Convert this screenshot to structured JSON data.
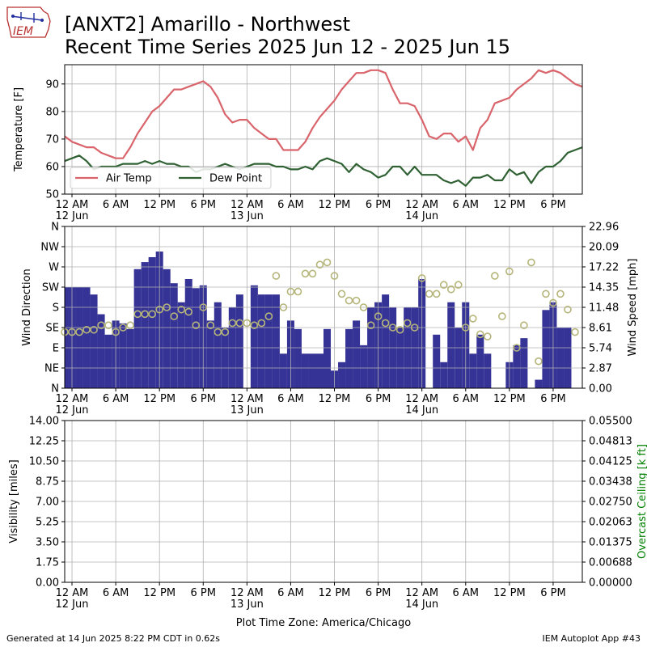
{
  "header": {
    "logo_text": "IEM",
    "title_line1": "[ANXT2] Amarillo - Northwest",
    "title_line2": "Recent Time Series 2025 Jun 12 - 2025 Jun 15"
  },
  "footer": {
    "generated": "Generated at 14 Jun 2025 8:22 PM CDT in 0.62s",
    "app": "IEM Autoplot App #43",
    "timezone": "Plot Time Zone: America/Chicago"
  },
  "colors": {
    "air_temp": "#d9646b",
    "dew_point": "#2f6133",
    "wind_speed_bar": "#363396",
    "wind_dir_marker": "#b5b57a",
    "ceiling_axis": "#008000"
  },
  "x_ticks": [
    {
      "label": "12 AM",
      "sub": "12 Jun",
      "h": 0
    },
    {
      "label": "6 AM",
      "sub": "",
      "h": 6
    },
    {
      "label": "12 PM",
      "sub": "",
      "h": 12
    },
    {
      "label": "6 PM",
      "sub": "",
      "h": 18
    },
    {
      "label": "12 AM",
      "sub": "13 Jun",
      "h": 24
    },
    {
      "label": "6 AM",
      "sub": "",
      "h": 30
    },
    {
      "label": "12 PM",
      "sub": "",
      "h": 36
    },
    {
      "label": "6 PM",
      "sub": "",
      "h": 42
    },
    {
      "label": "12 AM",
      "sub": "14 Jun",
      "h": 48
    },
    {
      "label": "6 AM",
      "sub": "",
      "h": 54
    },
    {
      "label": "12 PM",
      "sub": "",
      "h": 60
    },
    {
      "label": "6 PM",
      "sub": "",
      "h": 66
    }
  ],
  "chart_data": [
    {
      "type": "line",
      "ylabel": "Temperature [F]",
      "ylim": [
        50,
        97
      ],
      "xlim_hours": [
        -1,
        70
      ],
      "yticks": [
        50,
        60,
        70,
        80,
        90
      ],
      "grid": true,
      "legend": "lower-left",
      "series": [
        {
          "name": "Air Temp",
          "x": [
            -1,
            0,
            1,
            2,
            3,
            4,
            5,
            6,
            7,
            8,
            9,
            10,
            11,
            12,
            13,
            14,
            15,
            16,
            17,
            18,
            19,
            20,
            21,
            22,
            23,
            24,
            25,
            26,
            27,
            28,
            29,
            30,
            31,
            32,
            33,
            34,
            35,
            36,
            37,
            38,
            39,
            40,
            41,
            42,
            43,
            44,
            45,
            46,
            47,
            48,
            49,
            50,
            51,
            52,
            53,
            54,
            55,
            56,
            57,
            58,
            59,
            60,
            61,
            62,
            63,
            64,
            65,
            66,
            67,
            68,
            69,
            70
          ],
          "values": [
            71,
            69,
            68,
            67,
            67,
            65,
            64,
            63,
            63,
            67,
            72,
            76,
            80,
            82,
            85,
            88,
            88,
            89,
            90,
            91,
            89,
            85,
            79,
            76,
            77,
            77,
            74,
            72,
            70,
            70,
            66,
            66,
            66,
            69,
            74,
            78,
            81,
            84,
            88,
            91,
            94,
            94,
            95,
            95,
            94,
            88,
            83,
            83,
            82,
            77,
            71,
            70,
            72,
            72,
            69,
            71,
            66,
            74,
            77,
            83,
            84,
            85,
            88,
            90,
            92,
            95,
            94,
            95,
            94,
            92,
            90,
            89
          ]
        },
        {
          "name": "Dew Point",
          "x": [
            -1,
            0,
            1,
            2,
            3,
            4,
            5,
            6,
            7,
            8,
            9,
            10,
            11,
            12,
            13,
            14,
            15,
            16,
            17,
            18,
            19,
            20,
            21,
            22,
            23,
            24,
            25,
            26,
            27,
            28,
            29,
            30,
            31,
            32,
            33,
            34,
            35,
            36,
            37,
            38,
            39,
            40,
            41,
            42,
            43,
            44,
            45,
            46,
            47,
            48,
            49,
            50,
            51,
            52,
            53,
            54,
            55,
            56,
            57,
            58,
            59,
            60,
            61,
            62,
            63,
            64,
            65,
            66,
            67,
            68,
            69,
            70
          ],
          "values": [
            62,
            63,
            64,
            62,
            59,
            60,
            60,
            60,
            61,
            61,
            61,
            62,
            61,
            62,
            61,
            61,
            60,
            60,
            58,
            59,
            59,
            60,
            61,
            60,
            59,
            60,
            61,
            61,
            61,
            60,
            60,
            59,
            59,
            60,
            59,
            62,
            63,
            62,
            61,
            58,
            61,
            59,
            58,
            56,
            57,
            60,
            60,
            57,
            60,
            57,
            57,
            57,
            55,
            54,
            55,
            53,
            56,
            56,
            57,
            55,
            55,
            59,
            57,
            58,
            54,
            58,
            60,
            60,
            62,
            65,
            66,
            67
          ]
        }
      ]
    },
    {
      "type": "bar",
      "ylabel": "Wind Direction",
      "y2label": "Wind Speed [mph]",
      "dir_ticks": [
        "N",
        "NE",
        "E",
        "SE",
        "S",
        "SW",
        "W",
        "NW",
        "N"
      ],
      "speed_ticks": [
        "0.00",
        "2.87",
        "5.74",
        "8.61",
        "11.48",
        "14.35",
        "17.22",
        "20.09",
        "22.96"
      ],
      "speed_ylim": [
        0,
        22.96
      ],
      "dir_ylim": [
        0,
        360
      ],
      "grid": true,
      "series": [
        {
          "name": "Wind Speed",
          "x": [
            -0.5,
            0,
            1,
            2,
            3,
            4,
            5,
            6,
            7,
            8,
            9,
            10,
            11,
            12,
            13,
            14,
            15,
            16,
            17,
            18,
            19,
            20,
            21,
            22,
            23,
            24,
            25,
            26,
            27,
            28,
            29,
            30,
            31,
            32,
            33,
            34,
            35,
            36,
            37,
            38,
            39,
            40,
            41,
            42,
            43,
            44,
            45,
            46,
            47,
            48,
            49,
            50,
            51,
            52,
            53,
            54,
            55,
            56,
            57,
            58,
            59,
            60,
            61,
            62,
            63,
            64,
            65,
            66,
            67,
            68
          ],
          "values": [
            14.35,
            14.35,
            14.35,
            14.35,
            13.3,
            10.5,
            7.6,
            9.6,
            9.2,
            8.4,
            16.9,
            17.9,
            18.6,
            19.4,
            16.9,
            14.9,
            12.2,
            15.5,
            14.2,
            14.6,
            9.6,
            12.2,
            8.6,
            11.48,
            13.3,
            0,
            14.6,
            13.3,
            13.3,
            13.3,
            4.9,
            9.6,
            8.4,
            4.9,
            4.9,
            4.9,
            8.4,
            2.5,
            3.7,
            8.4,
            9.6,
            6.1,
            11.48,
            12.2,
            13.3,
            11.48,
            8.61,
            11.48,
            11.48,
            15.5,
            0,
            7.6,
            3.7,
            12.2,
            8.61,
            12.2,
            4.9,
            7.6,
            4.9,
            0,
            0,
            3.7,
            6.1,
            7.1,
            0,
            1.2,
            11.1,
            12.2,
            8.61,
            8.61
          ]
        },
        {
          "name": "Wind Direction",
          "x": [
            -1,
            0,
            1,
            2,
            3,
            4,
            5,
            6,
            7,
            8,
            9,
            10,
            11,
            12,
            13,
            14,
            15,
            16,
            17,
            18,
            19,
            20,
            21,
            22,
            23,
            24,
            25,
            26,
            27,
            28,
            29,
            30,
            31,
            32,
            33,
            34,
            35,
            36,
            37,
            38,
            39,
            40,
            41,
            42,
            43,
            44,
            45,
            46,
            47,
            48,
            49,
            50,
            51,
            52,
            53,
            54,
            55,
            56,
            57,
            58,
            59,
            60,
            61,
            62,
            63,
            64,
            65,
            66,
            67,
            68,
            69
          ],
          "values": [
            125,
            125,
            125,
            130,
            130,
            140,
            140,
            125,
            135,
            140,
            165,
            165,
            165,
            175,
            180,
            160,
            175,
            170,
            140,
            180,
            140,
            125,
            125,
            145,
            145,
            145,
            140,
            145,
            160,
            250,
            180,
            215,
            215,
            255,
            255,
            275,
            280,
            250,
            210,
            195,
            195,
            180,
            140,
            160,
            145,
            135,
            130,
            145,
            135,
            245,
            210,
            210,
            230,
            220,
            230,
            135,
            155,
            120,
            115,
            250,
            160,
            260,
            90,
            140,
            280,
            60,
            210,
            190,
            210,
            175,
            125
          ]
        }
      ]
    },
    {
      "type": "line",
      "ylabel": "Visibility [miles]",
      "y2label": "Overcast Ceiling [k ft]",
      "ylim": [
        0,
        14
      ],
      "y2lim": [
        0,
        0.055
      ],
      "yticks": [
        "0.00",
        "1.75",
        "3.50",
        "5.25",
        "7.00",
        "8.75",
        "10.50",
        "12.25",
        "14.00"
      ],
      "y2ticks": [
        "0.00000",
        "0.00688",
        "0.01375",
        "0.02063",
        "0.02750",
        "0.03438",
        "0.04125",
        "0.04813",
        "0.05500"
      ],
      "grid": true,
      "series": []
    }
  ]
}
